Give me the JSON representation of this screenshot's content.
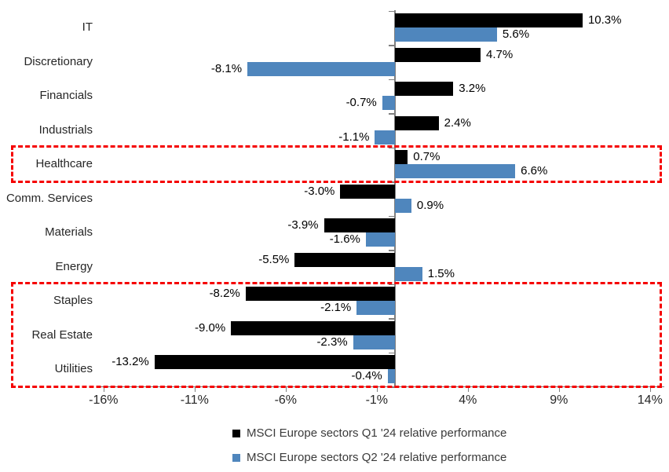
{
  "chart_data": {
    "type": "bar",
    "orientation": "horizontal",
    "categories": [
      "IT",
      "Discretionary",
      "Financials",
      "Industrials",
      "Healthcare",
      "Comm. Services",
      "Materials",
      "Energy",
      "Staples",
      "Real Estate",
      "Utilities"
    ],
    "series": [
      {
        "name": "MSCI Europe sectors Q1 '24 relative performance",
        "color": "#000000",
        "values": [
          10.3,
          4.7,
          3.2,
          2.4,
          0.7,
          -3.0,
          -3.9,
          -5.5,
          -8.2,
          -9.0,
          -13.2
        ]
      },
      {
        "name": "MSCI Europe sectors Q2 '24 relative performance",
        "color": "#4f86bd",
        "values": [
          5.6,
          -8.1,
          -0.7,
          -1.1,
          6.6,
          0.9,
          -1.6,
          1.5,
          -2.1,
          -2.3,
          -0.4
        ]
      }
    ],
    "value_label_suffix": "%",
    "x_axis": {
      "ticks": [
        {
          "v": -16,
          "label": "-16%"
        },
        {
          "v": -11,
          "label": "-11%"
        },
        {
          "v": -6,
          "label": "-6%"
        },
        {
          "v": -1,
          "label": "-1%"
        },
        {
          "v": 4,
          "label": "4%"
        },
        {
          "v": 9,
          "label": "9%"
        },
        {
          "v": 14,
          "label": "14%"
        }
      ],
      "range": [
        -16,
        14
      ]
    },
    "highlight_boxes": [
      {
        "start_row": 4,
        "end_row": 4
      },
      {
        "start_row": 8,
        "end_row": 10
      }
    ],
    "highlight_color": "#f50000",
    "axis_color": "#7f7f7f",
    "legend_position": "bottom",
    "grid": false
  }
}
